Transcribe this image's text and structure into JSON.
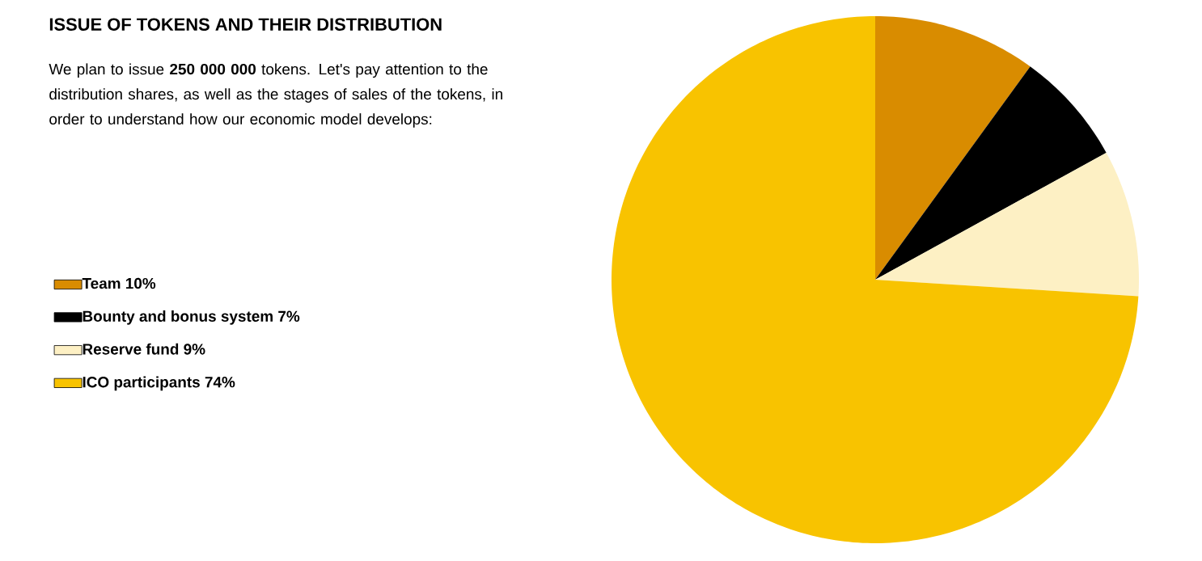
{
  "chart_data": {
    "type": "pie",
    "title": "ISSUE OF TOKENS AND THEIR DISTRIBUTION",
    "subtitle": "We plan to issue **250 000 000** tokens. Let's pay attention to the distribution shares, as well as the stages of sales of the tokens, in order to understand how our economic model develops:",
    "categories": [
      "Team 10%",
      "Bounty and bonus system 7%",
      "Reserve fund 9%",
      "ICO participants 74%"
    ],
    "values": [
      10,
      7,
      9,
      74
    ],
    "colors": [
      "#d98c00",
      "#000000",
      "#fdf0c4",
      "#f8c300"
    ],
    "legend": "left"
  }
}
